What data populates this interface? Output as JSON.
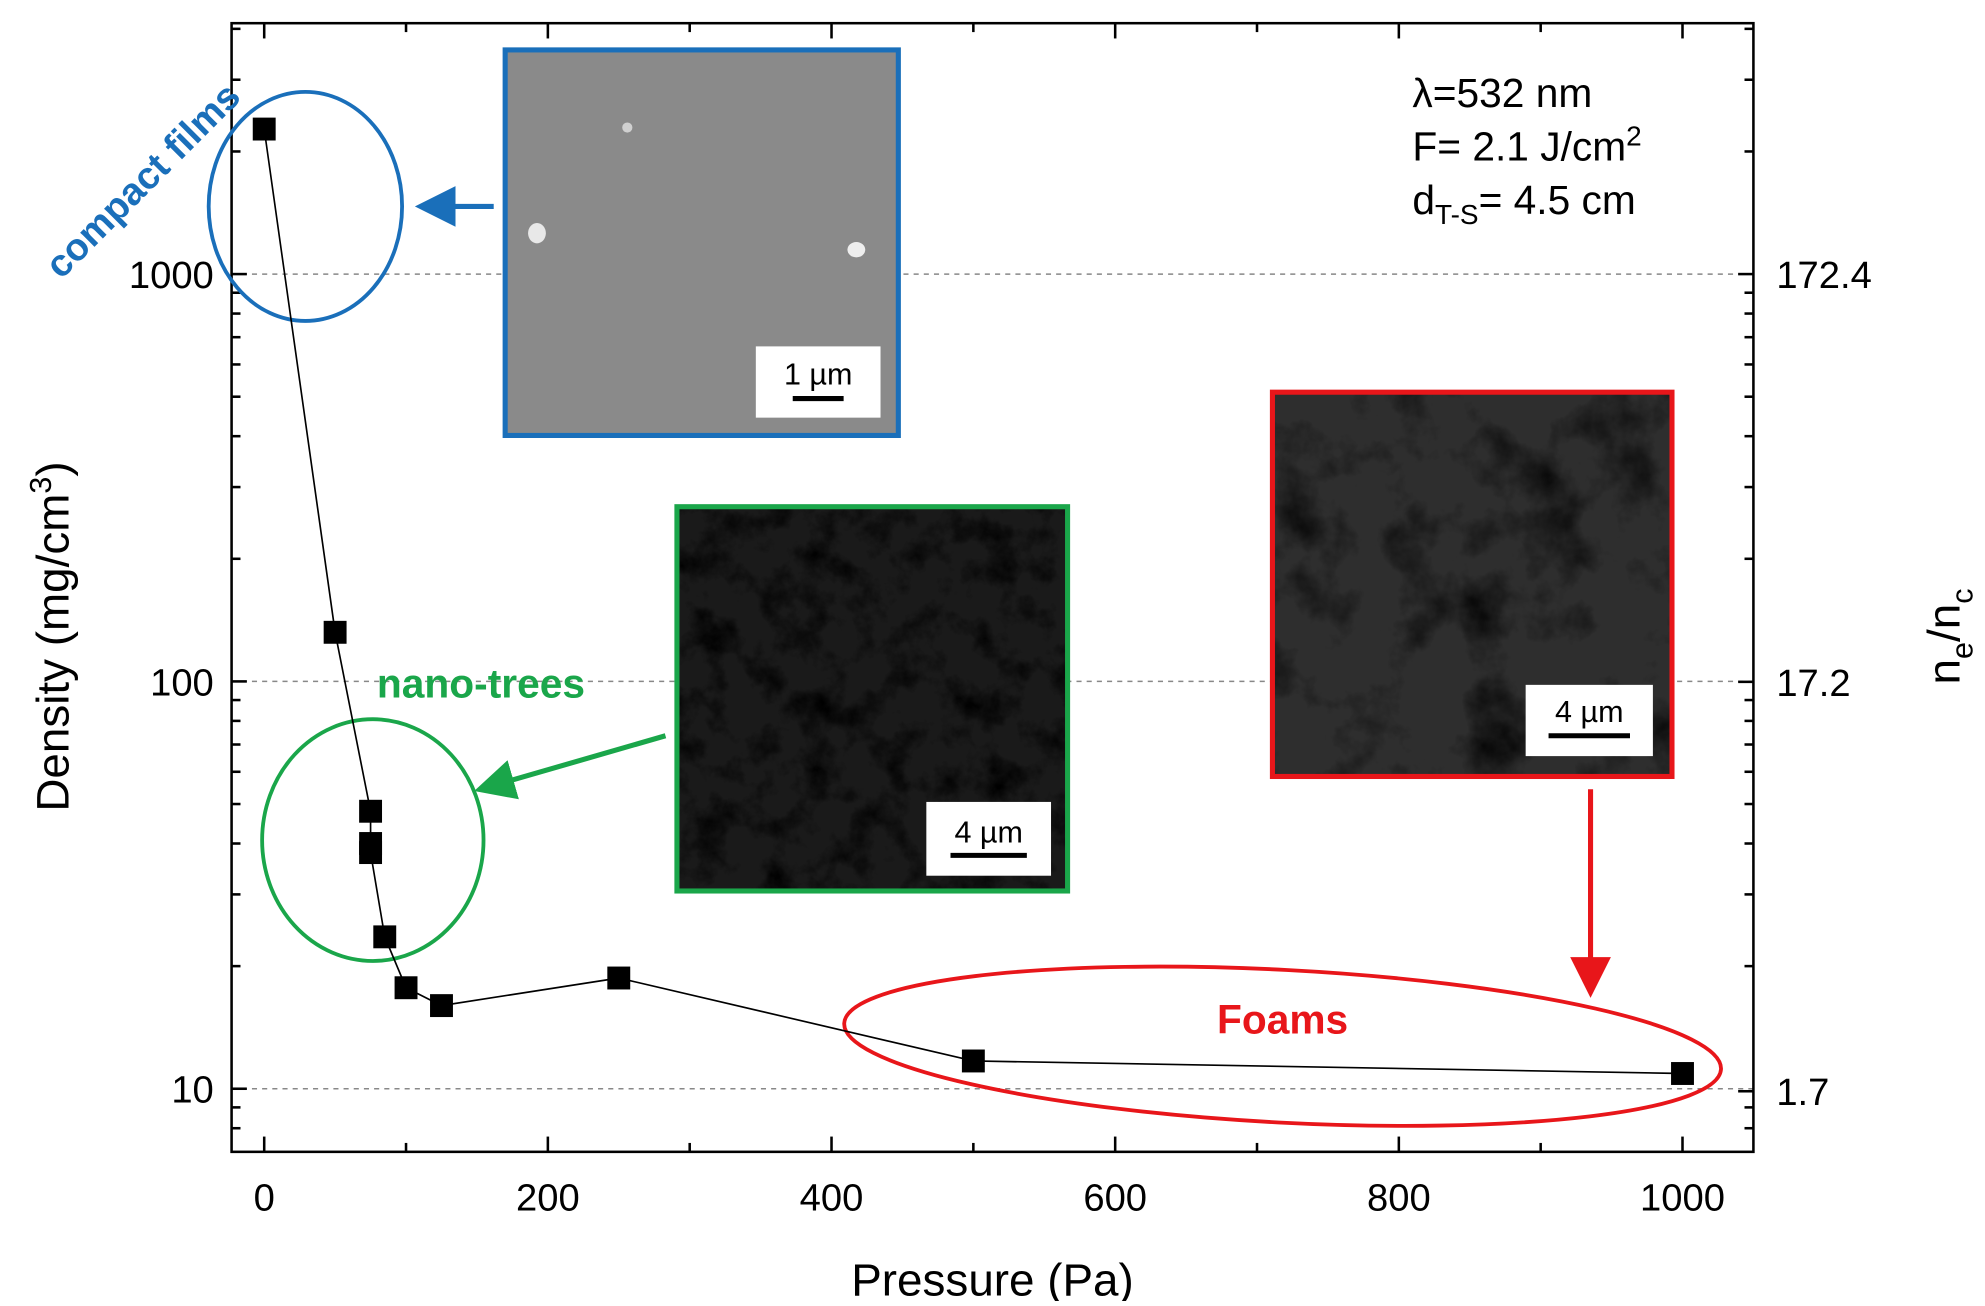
{
  "chart_data": {
    "type": "line",
    "x_label": "Pressure (Pa)",
    "y_label": [
      "Density (mg/cm",
      "3",
      ")"
    ],
    "y2_label": [
      "n",
      "e",
      "/n",
      "c"
    ],
    "x": [
      0,
      50,
      75,
      75,
      75,
      85,
      100,
      125,
      250,
      500,
      1000
    ],
    "series": [
      {
        "color": "#000000",
        "values": [
          2270,
          132,
          48,
          40,
          38,
          23.6,
          17.7,
          16,
          18.7,
          11.7,
          10.9
        ]
      }
    ],
    "xlim": [
      -23,
      1050
    ],
    "xticks": [
      0,
      200,
      400,
      600,
      800,
      1000
    ],
    "xminorticks": [
      100,
      300,
      500,
      700,
      900
    ],
    "ylim": [
      7,
      4130
    ],
    "log_y": true,
    "yticks": [
      10,
      100,
      1000
    ],
    "yminorticks": [
      8,
      9,
      20,
      30,
      40,
      50,
      60,
      70,
      80,
      90,
      200,
      300,
      400,
      500,
      600,
      700,
      800,
      900,
      2000,
      3000,
      4000
    ],
    "y2lim": [
      1.207,
      712
    ],
    "y2ticks": [
      1.7,
      17.2,
      172.4
    ],
    "grid": true,
    "annotations": [
      {
        "text": "compact films",
        "color": "#1a6fba"
      },
      {
        "text": "nano-trees",
        "color": "#1aa64a"
      },
      {
        "text": "Foams",
        "color": "#e8161a"
      }
    ],
    "scale_bars": [
      "1 µm",
      "4 µm",
      "4 µm"
    ],
    "conditions": [
      [
        "λ=532 nm"
      ],
      [
        "F= 2.1 J/cm",
        "2"
      ],
      [
        "d",
        "T-S",
        "= 4.5 cm"
      ]
    ]
  }
}
